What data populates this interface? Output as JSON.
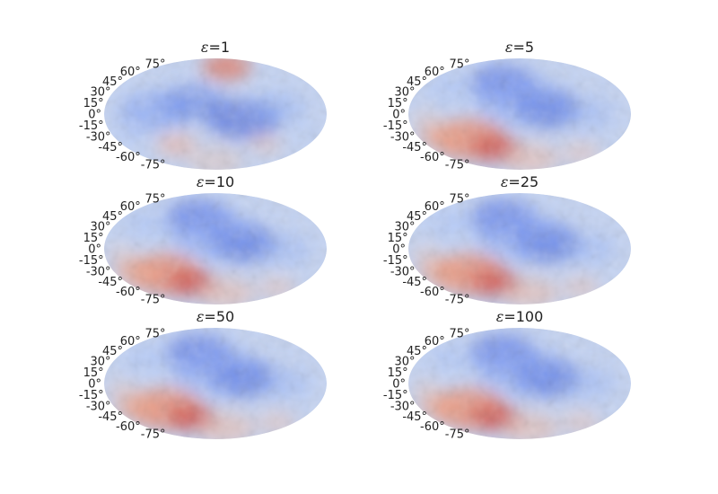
{
  "figure": {
    "panels": [
      {
        "id": "eps-1",
        "title_symbol": "ε",
        "title_value": "=1",
        "latitude_ticks": [
          "75°",
          "60°",
          "45°",
          "30°",
          "15°",
          "0°",
          "-15°",
          "-30°",
          "-45°",
          "-60°",
          "-75°"
        ]
      },
      {
        "id": "eps-5",
        "title_symbol": "ε",
        "title_value": "=5",
        "latitude_ticks": [
          "75°",
          "60°",
          "45°",
          "30°",
          "15°",
          "0°",
          "-15°",
          "-30°",
          "-45°",
          "-60°",
          "-75°"
        ]
      },
      {
        "id": "eps-10",
        "title_symbol": "ε",
        "title_value": "=10",
        "latitude_ticks": [
          "75°",
          "60°",
          "45°",
          "30°",
          "15°",
          "0°",
          "-15°",
          "-30°",
          "-45°",
          "-60°",
          "-75°"
        ]
      },
      {
        "id": "eps-25",
        "title_symbol": "ε",
        "title_value": "=25",
        "latitude_ticks": [
          "75°",
          "60°",
          "45°",
          "30°",
          "15°",
          "0°",
          "-15°",
          "-30°",
          "-45°",
          "-60°",
          "-75°"
        ]
      },
      {
        "id": "eps-50",
        "title_symbol": "ε",
        "title_value": "=50",
        "latitude_ticks": [
          "75°",
          "60°",
          "45°",
          "30°",
          "15°",
          "0°",
          "-15°",
          "-30°",
          "-45°",
          "-60°",
          "-75°"
        ]
      },
      {
        "id": "eps-100",
        "title_symbol": "ε",
        "title_value": "=100",
        "latitude_ticks": [
          "75°",
          "60°",
          "45°",
          "30°",
          "15°",
          "0°",
          "-15°",
          "-30°",
          "-45°",
          "-60°",
          "-75°"
        ]
      }
    ],
    "projection": "mollweide",
    "colormap": "coolwarm",
    "colors": {
      "cool_extreme": "#3b4cc0",
      "neutral": "#dddddd",
      "warm_extreme": "#b40426"
    }
  }
}
